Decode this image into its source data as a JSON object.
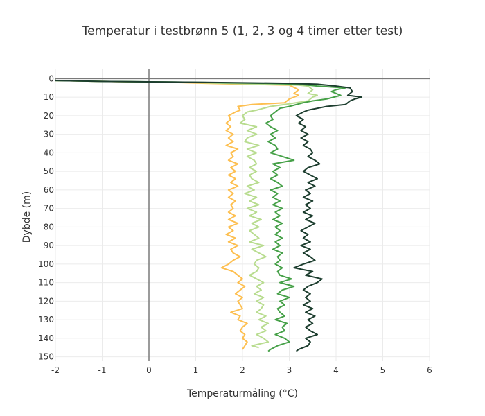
{
  "chart_data": {
    "type": "line",
    "title": "Temperatur i testbrønn 5 (1, 2, 3 og 4 timer etter test)",
    "xlabel": "Temperaturmåling (°C)",
    "ylabel": "Dybde (m)",
    "xlim": [
      -2,
      6
    ],
    "ylim": [
      152,
      -5
    ],
    "y_reversed": true,
    "grid": true,
    "legend": "none",
    "x_ticks": [
      -2,
      -1,
      0,
      1,
      2,
      3,
      4,
      5,
      6
    ],
    "y_ticks": [
      0,
      10,
      20,
      30,
      40,
      50,
      60,
      70,
      80,
      90,
      100,
      110,
      120,
      130,
      140,
      150
    ],
    "series": [
      {
        "color": "#fdbf50",
        "points": [
          [
            -2,
            0.5
          ],
          [
            -2,
            1
          ],
          [
            -1,
            1.5
          ],
          [
            0.5,
            2
          ],
          [
            1.2,
            2.5
          ],
          [
            2,
            3
          ],
          [
            3,
            3.5
          ],
          [
            3.2,
            6
          ],
          [
            3.1,
            8
          ],
          [
            3.2,
            9
          ],
          [
            3,
            11
          ],
          [
            2.9,
            13
          ],
          [
            2.2,
            14
          ],
          [
            1.9,
            15
          ],
          [
            1.95,
            17
          ],
          [
            1.85,
            18
          ],
          [
            1.7,
            20
          ],
          [
            1.75,
            22
          ],
          [
            1.65,
            24
          ],
          [
            1.75,
            26
          ],
          [
            1.65,
            28
          ],
          [
            1.8,
            30
          ],
          [
            1.7,
            32
          ],
          [
            1.8,
            34
          ],
          [
            1.65,
            36
          ],
          [
            1.9,
            38
          ],
          [
            1.75,
            40
          ],
          [
            1.8,
            42
          ],
          [
            1.7,
            44
          ],
          [
            1.9,
            46
          ],
          [
            1.75,
            48
          ],
          [
            1.85,
            50
          ],
          [
            1.7,
            52
          ],
          [
            1.85,
            54
          ],
          [
            1.75,
            56
          ],
          [
            1.9,
            58
          ],
          [
            1.7,
            60
          ],
          [
            1.8,
            62
          ],
          [
            1.7,
            64
          ],
          [
            1.85,
            66
          ],
          [
            1.75,
            68
          ],
          [
            1.8,
            70
          ],
          [
            1.7,
            72
          ],
          [
            1.85,
            74
          ],
          [
            1.7,
            76
          ],
          [
            1.9,
            78
          ],
          [
            1.7,
            80
          ],
          [
            1.8,
            82
          ],
          [
            1.65,
            84
          ],
          [
            1.85,
            86
          ],
          [
            1.7,
            88
          ],
          [
            1.9,
            90
          ],
          [
            1.75,
            92
          ],
          [
            1.8,
            94
          ],
          [
            1.95,
            96
          ],
          [
            1.8,
            98
          ],
          [
            1.7,
            100
          ],
          [
            1.55,
            102
          ],
          [
            1.8,
            104
          ],
          [
            1.9,
            106
          ],
          [
            2.0,
            108
          ],
          [
            1.9,
            110
          ],
          [
            2.05,
            112
          ],
          [
            1.95,
            114
          ],
          [
            1.85,
            116
          ],
          [
            2.0,
            118
          ],
          [
            1.9,
            120
          ],
          [
            1.95,
            122
          ],
          [
            2.0,
            124
          ],
          [
            1.75,
            126
          ],
          [
            1.95,
            128
          ],
          [
            1.9,
            130
          ],
          [
            2.1,
            132
          ],
          [
            2.0,
            134
          ],
          [
            1.95,
            136
          ],
          [
            2.05,
            138
          ],
          [
            2.0,
            140
          ],
          [
            2.1,
            142
          ],
          [
            2.05,
            144
          ],
          [
            2.0,
            146
          ]
        ]
      },
      {
        "color": "#b8dc8f",
        "points": [
          [
            -2,
            0.5
          ],
          [
            -2,
            1
          ],
          [
            -1,
            1.5
          ],
          [
            0.8,
            2
          ],
          [
            1.6,
            2.5
          ],
          [
            2.5,
            3
          ],
          [
            3.2,
            3.5
          ],
          [
            3.4,
            4
          ],
          [
            3.5,
            6
          ],
          [
            3.4,
            8
          ],
          [
            3.6,
            9
          ],
          [
            3.5,
            10
          ],
          [
            3.4,
            12
          ],
          [
            2.9,
            14
          ],
          [
            2.6,
            15
          ],
          [
            2.3,
            17
          ],
          [
            2.1,
            18
          ],
          [
            2.0,
            20
          ],
          [
            2.05,
            22
          ],
          [
            1.95,
            24
          ],
          [
            2.3,
            26
          ],
          [
            2.1,
            28
          ],
          [
            2.3,
            30
          ],
          [
            2.1,
            32
          ],
          [
            2.05,
            34
          ],
          [
            2.35,
            36
          ],
          [
            2.1,
            38
          ],
          [
            2.3,
            40
          ],
          [
            2.1,
            42
          ],
          [
            2.25,
            44
          ],
          [
            2.3,
            46
          ],
          [
            2.15,
            48
          ],
          [
            2.3,
            50
          ],
          [
            2.15,
            52
          ],
          [
            2.2,
            54
          ],
          [
            2.35,
            56
          ],
          [
            2.1,
            58
          ],
          [
            2.25,
            60
          ],
          [
            2.05,
            62
          ],
          [
            2.3,
            64
          ],
          [
            2.15,
            66
          ],
          [
            2.35,
            68
          ],
          [
            2.1,
            70
          ],
          [
            2.3,
            72
          ],
          [
            2.15,
            74
          ],
          [
            2.4,
            76
          ],
          [
            2.2,
            78
          ],
          [
            2.35,
            80
          ],
          [
            2.15,
            82
          ],
          [
            2.25,
            84
          ],
          [
            2.35,
            86
          ],
          [
            2.15,
            88
          ],
          [
            2.45,
            90
          ],
          [
            2.2,
            92
          ],
          [
            2.35,
            94
          ],
          [
            2.5,
            96
          ],
          [
            2.3,
            98
          ],
          [
            2.25,
            100
          ],
          [
            2.35,
            102
          ],
          [
            2.3,
            104
          ],
          [
            2.15,
            106
          ],
          [
            2.3,
            108
          ],
          [
            2.45,
            110
          ],
          [
            2.3,
            112
          ],
          [
            2.4,
            114
          ],
          [
            2.25,
            116
          ],
          [
            2.45,
            118
          ],
          [
            2.3,
            120
          ],
          [
            2.45,
            122
          ],
          [
            2.4,
            124
          ],
          [
            2.3,
            126
          ],
          [
            2.5,
            128
          ],
          [
            2.35,
            130
          ],
          [
            2.55,
            132
          ],
          [
            2.4,
            134
          ],
          [
            2.5,
            136
          ],
          [
            2.3,
            138
          ],
          [
            2.45,
            140
          ],
          [
            2.55,
            142
          ],
          [
            2.2,
            144
          ],
          [
            2.35,
            145
          ]
        ]
      },
      {
        "color": "#45a047",
        "points": [
          [
            -2,
            0.5
          ],
          [
            -2,
            1
          ],
          [
            -1,
            1.5
          ],
          [
            1.0,
            2
          ],
          [
            2.5,
            2.5
          ],
          [
            3.2,
            3
          ],
          [
            3.6,
            4
          ],
          [
            4.2,
            5
          ],
          [
            4.0,
            6
          ],
          [
            3.9,
            7
          ],
          [
            4.1,
            9
          ],
          [
            3.8,
            11
          ],
          [
            3.5,
            12
          ],
          [
            3.3,
            13
          ],
          [
            3.0,
            15
          ],
          [
            2.8,
            16
          ],
          [
            2.7,
            18
          ],
          [
            2.6,
            20
          ],
          [
            2.65,
            22
          ],
          [
            2.5,
            24
          ],
          [
            2.6,
            26
          ],
          [
            2.75,
            28
          ],
          [
            2.6,
            30
          ],
          [
            2.7,
            32
          ],
          [
            2.55,
            34
          ],
          [
            2.7,
            36
          ],
          [
            2.75,
            38
          ],
          [
            2.6,
            40
          ],
          [
            2.85,
            42
          ],
          [
            3.1,
            44
          ],
          [
            2.65,
            46
          ],
          [
            2.8,
            48
          ],
          [
            2.65,
            50
          ],
          [
            2.75,
            52
          ],
          [
            2.6,
            54
          ],
          [
            2.75,
            56
          ],
          [
            2.85,
            58
          ],
          [
            2.6,
            60
          ],
          [
            2.75,
            62
          ],
          [
            2.65,
            64
          ],
          [
            2.8,
            66
          ],
          [
            2.65,
            68
          ],
          [
            2.85,
            70
          ],
          [
            2.7,
            72
          ],
          [
            2.8,
            74
          ],
          [
            2.65,
            76
          ],
          [
            2.85,
            78
          ],
          [
            2.7,
            80
          ],
          [
            2.8,
            82
          ],
          [
            2.7,
            84
          ],
          [
            2.85,
            86
          ],
          [
            2.7,
            88
          ],
          [
            2.8,
            90
          ],
          [
            2.65,
            92
          ],
          [
            2.85,
            94
          ],
          [
            2.75,
            96
          ],
          [
            2.8,
            98
          ],
          [
            2.7,
            100
          ],
          [
            2.85,
            102
          ],
          [
            2.75,
            104
          ],
          [
            2.8,
            106
          ],
          [
            3.05,
            108
          ],
          [
            2.8,
            110
          ],
          [
            3.1,
            112
          ],
          [
            2.85,
            114
          ],
          [
            2.75,
            116
          ],
          [
            3.0,
            118
          ],
          [
            2.8,
            120
          ],
          [
            2.9,
            122
          ],
          [
            2.75,
            124
          ],
          [
            2.8,
            126
          ],
          [
            2.9,
            128
          ],
          [
            2.7,
            130
          ],
          [
            2.95,
            132
          ],
          [
            2.85,
            134
          ],
          [
            2.9,
            136
          ],
          [
            2.7,
            138
          ],
          [
            2.9,
            140
          ],
          [
            3.0,
            142
          ],
          [
            2.75,
            144
          ],
          [
            2.6,
            146
          ],
          [
            2.55,
            147
          ]
        ]
      },
      {
        "color": "#1c3d2e",
        "points": [
          [
            -2,
            0.5
          ],
          [
            -2,
            1
          ],
          [
            -1,
            1.5
          ],
          [
            1.2,
            2
          ],
          [
            3.0,
            2.5
          ],
          [
            3.6,
            3
          ],
          [
            4.0,
            4
          ],
          [
            4.3,
            5
          ],
          [
            4.35,
            7
          ],
          [
            4.25,
            9
          ],
          [
            4.55,
            10
          ],
          [
            4.4,
            11
          ],
          [
            4.3,
            12
          ],
          [
            4.2,
            14
          ],
          [
            3.8,
            15
          ],
          [
            3.6,
            16
          ],
          [
            3.4,
            17
          ],
          [
            3.3,
            18
          ],
          [
            3.15,
            20
          ],
          [
            3.3,
            22
          ],
          [
            3.2,
            24
          ],
          [
            3.35,
            26
          ],
          [
            3.25,
            28
          ],
          [
            3.4,
            30
          ],
          [
            3.25,
            32
          ],
          [
            3.4,
            34
          ],
          [
            3.3,
            36
          ],
          [
            3.45,
            38
          ],
          [
            3.5,
            40
          ],
          [
            3.4,
            42
          ],
          [
            3.55,
            44
          ],
          [
            3.65,
            46
          ],
          [
            3.4,
            48
          ],
          [
            3.3,
            50
          ],
          [
            3.45,
            52
          ],
          [
            3.6,
            54
          ],
          [
            3.4,
            56
          ],
          [
            3.55,
            58
          ],
          [
            3.35,
            60
          ],
          [
            3.45,
            62
          ],
          [
            3.3,
            64
          ],
          [
            3.5,
            66
          ],
          [
            3.35,
            68
          ],
          [
            3.45,
            70
          ],
          [
            3.3,
            72
          ],
          [
            3.5,
            74
          ],
          [
            3.35,
            76
          ],
          [
            3.55,
            78
          ],
          [
            3.4,
            80
          ],
          [
            3.25,
            82
          ],
          [
            3.4,
            84
          ],
          [
            3.3,
            86
          ],
          [
            3.45,
            88
          ],
          [
            3.25,
            90
          ],
          [
            3.45,
            92
          ],
          [
            3.3,
            94
          ],
          [
            3.45,
            96
          ],
          [
            3.55,
            98
          ],
          [
            3.3,
            100
          ],
          [
            3.1,
            102
          ],
          [
            3.5,
            104
          ],
          [
            3.35,
            106
          ],
          [
            3.7,
            108
          ],
          [
            3.6,
            110
          ],
          [
            3.4,
            112
          ],
          [
            3.3,
            114
          ],
          [
            3.45,
            116
          ],
          [
            3.35,
            118
          ],
          [
            3.45,
            120
          ],
          [
            3.3,
            122
          ],
          [
            3.5,
            124
          ],
          [
            3.35,
            126
          ],
          [
            3.55,
            128
          ],
          [
            3.4,
            130
          ],
          [
            3.5,
            132
          ],
          [
            3.35,
            134
          ],
          [
            3.45,
            136
          ],
          [
            3.6,
            138
          ],
          [
            3.35,
            140
          ],
          [
            3.45,
            142
          ],
          [
            3.4,
            144
          ],
          [
            3.2,
            146
          ],
          [
            3.15,
            147
          ]
        ]
      }
    ]
  }
}
